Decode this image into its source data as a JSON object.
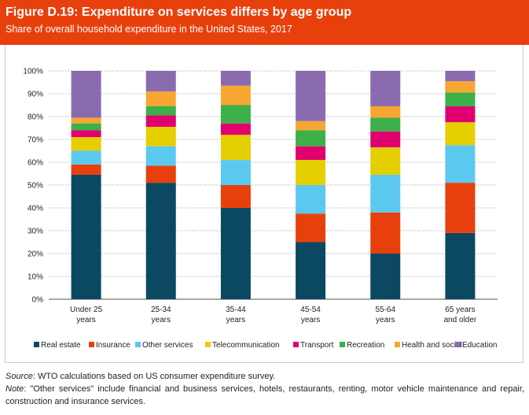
{
  "header": {
    "title": "Figure D.19: Expenditure on services differs by age group",
    "subtitle": "Share of overall household expenditure in the United States, 2017"
  },
  "footnotes": {
    "source_label": "Source",
    "source_text": ": WTO calculations based on US consumer expenditure survey.",
    "note_label": "Note",
    "note_text": ": \"Other services\" include financial and business services, hotels, restaurants, renting, motor vehicle maintenance and repair, construction and insurance services."
  },
  "chart_data": {
    "type": "bar",
    "stacked": true,
    "categories": [
      [
        "Under 25",
        "years"
      ],
      [
        "25-34",
        "years"
      ],
      [
        "35-44",
        "years"
      ],
      [
        "45-54",
        "years"
      ],
      [
        "55-64",
        "years"
      ],
      [
        "65 years",
        "and older"
      ]
    ],
    "yticks": [
      "0%",
      "10%",
      "20%",
      "30%",
      "40%",
      "50%",
      "60%",
      "70%",
      "80%",
      "90%",
      "100%"
    ],
    "ylim": [
      0,
      100
    ],
    "grid": true,
    "legend_position": "bottom",
    "series": [
      {
        "name": "Real estate",
        "color": "#0b4963",
        "values": [
          54.5,
          51,
          40,
          25,
          20,
          29
        ]
      },
      {
        "name": "Insurance",
        "color": "#e8400c",
        "values": [
          4.5,
          7.5,
          10,
          12.5,
          18,
          22
        ]
      },
      {
        "name": "Other services",
        "color": "#5bc8f0",
        "values": [
          6,
          8.5,
          11,
          12.5,
          16.5,
          16.5
        ]
      },
      {
        "name": "Telecommunication",
        "color": "#e5cf00",
        "values": [
          6,
          8.5,
          11,
          11,
          12,
          10
        ]
      },
      {
        "name": "Transport",
        "color": "#e0006f",
        "values": [
          3,
          5,
          5,
          6,
          7,
          7
        ]
      },
      {
        "name": "Recreation",
        "color": "#3db049",
        "values": [
          3,
          4,
          8,
          7,
          6,
          6
        ]
      },
      {
        "name": "Health and social",
        "color": "#f7a632",
        "values": [
          2.5,
          6.5,
          8.5,
          4,
          5,
          5
        ]
      },
      {
        "name": "Education",
        "color": "#8a6bb0",
        "values": [
          20.5,
          9,
          6.5,
          22,
          15.5,
          4.5
        ]
      }
    ]
  }
}
